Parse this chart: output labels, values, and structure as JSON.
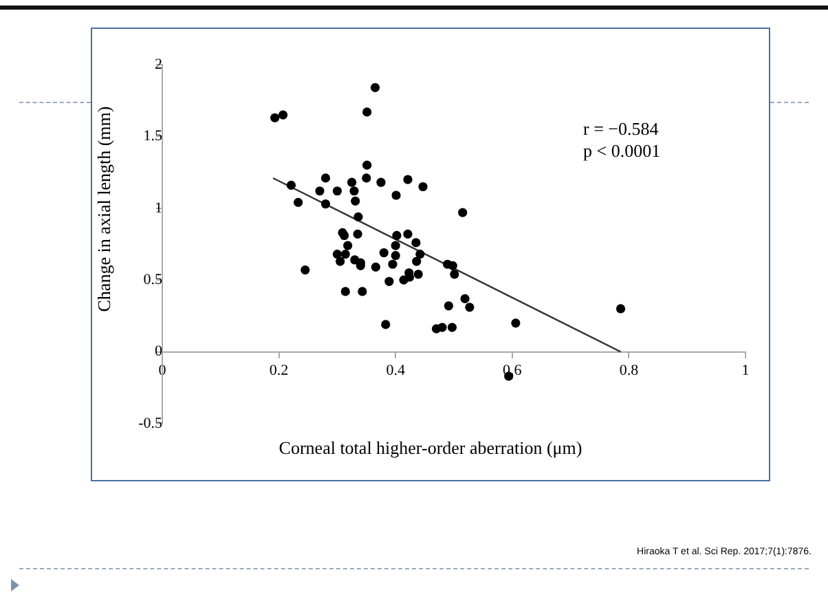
{
  "chart_data": {
    "type": "scatter",
    "xlabel": "Corneal total higher-order aberration (μm)",
    "ylabel": "Change in axial length (mm)",
    "xlim": [
      0,
      1
    ],
    "xticks": [
      0,
      0.2,
      0.4,
      0.6,
      0.8,
      1
    ],
    "ylim": [
      -0.5,
      2
    ],
    "yticks": [
      -0.5,
      0,
      0.5,
      1,
      1.5,
      2
    ],
    "grid": false,
    "legend": false,
    "marker": "circle",
    "annotations": [
      "r = −0.584",
      "p < 0.0001",
      "Hiraoka T et al. Sci Rep. 2017;7(1):7876."
    ],
    "series": [
      {
        "color": "#000000",
        "x": [
          0.193,
          0.207,
          0.221,
          0.233,
          0.245,
          0.27,
          0.28,
          0.28,
          0.3,
          0.3,
          0.305,
          0.309,
          0.312,
          0.314,
          0.314,
          0.318,
          0.325,
          0.329,
          0.331,
          0.33,
          0.336,
          0.335,
          0.34,
          0.34,
          0.343,
          0.35,
          0.351,
          0.351,
          0.365,
          0.366,
          0.375,
          0.38,
          0.383,
          0.389,
          0.395,
          0.4,
          0.4,
          0.401,
          0.402,
          0.414,
          0.421,
          0.421,
          0.423,
          0.424,
          0.435,
          0.436,
          0.439,
          0.442,
          0.447,
          0.47,
          0.48,
          0.497,
          0.489,
          0.498,
          0.501,
          0.491,
          0.515,
          0.519,
          0.527,
          0.606,
          0.786,
          0.594
        ],
        "values": [
          1.63,
          1.65,
          1.16,
          1.04,
          0.57,
          1.12,
          1.21,
          1.03,
          1.12,
          0.68,
          0.63,
          0.83,
          0.81,
          0.68,
          0.42,
          0.74,
          1.18,
          1.12,
          1.05,
          0.64,
          0.94,
          0.82,
          0.62,
          0.6,
          0.42,
          1.21,
          1.67,
          1.3,
          1.84,
          0.59,
          1.18,
          0.69,
          0.19,
          0.49,
          0.61,
          0.74,
          0.67,
          1.09,
          0.81,
          0.5,
          1.2,
          0.82,
          0.55,
          0.52,
          0.76,
          0.63,
          0.54,
          0.68,
          1.15,
          0.16,
          0.17,
          0.17,
          0.61,
          0.6,
          0.54,
          0.32,
          0.97,
          0.37,
          0.31,
          0.2,
          0.3,
          -0.17
        ]
      },
      {
        "type": "line",
        "color": "#333333",
        "marker": "none",
        "x": [
          0.19,
          0.786
        ],
        "values": [
          1.21,
          0
        ]
      }
    ]
  }
}
